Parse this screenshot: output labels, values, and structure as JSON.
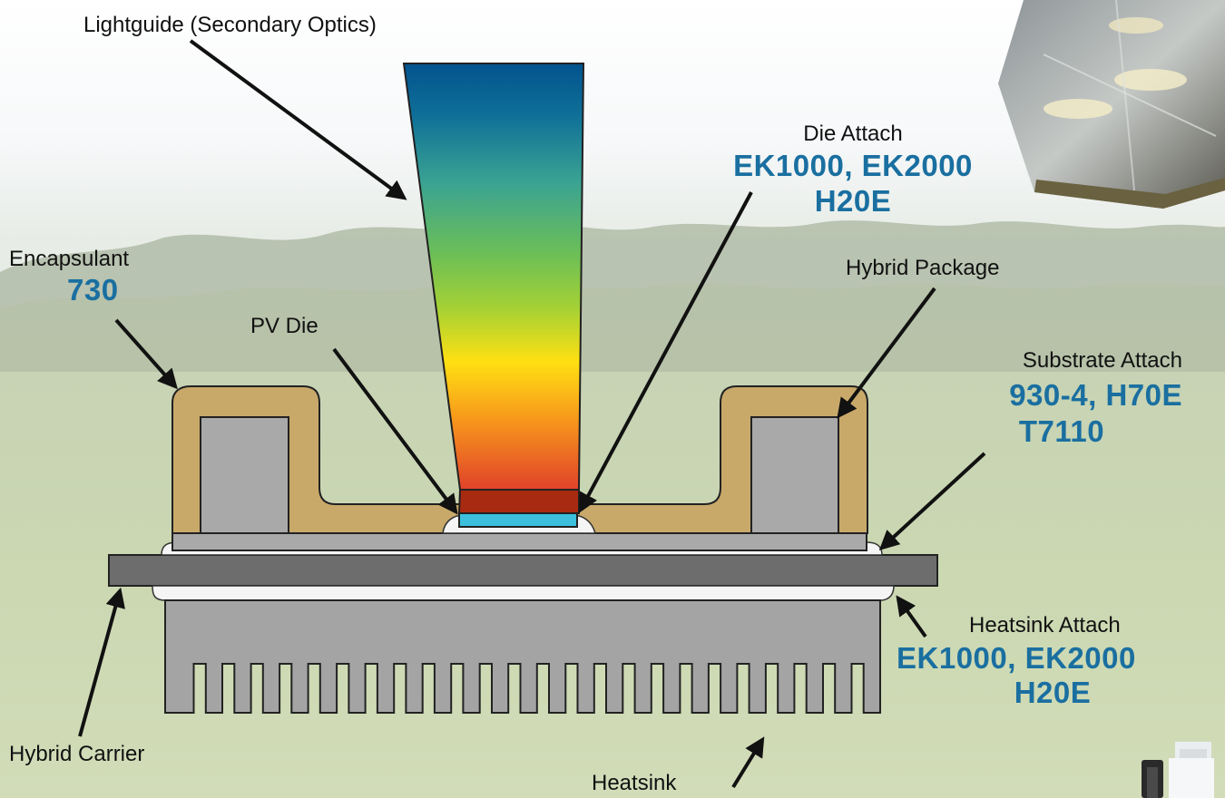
{
  "labels": {
    "lightguide": "Lightguide (Secondary Optics)",
    "die_attach": "Die Attach",
    "die_attach_products_1": "EK1000, EK2000",
    "die_attach_products_2": "H20E",
    "encapsulant": "Encapsulant",
    "encapsulant_product": "730",
    "pv_die": "PV Die",
    "hybrid_package": "Hybrid Package",
    "substrate_attach": "Substrate Attach",
    "substrate_attach_products_1": "930-4, H70E",
    "substrate_attach_products_2": "T7110",
    "heatsink_attach": "Heatsink Attach",
    "heatsink_attach_products_1": "EK1000, EK2000",
    "heatsink_attach_products_2": "H20E",
    "hybrid_carrier": "Hybrid Carrier",
    "heatsink": "Heatsink"
  },
  "colors": {
    "product_text": "#1a6fa0",
    "encapsulant": "#c8a96a",
    "package_gray": "#a9a9a9",
    "carrier_dark": "#6d6d6d",
    "heatsink_gray": "#a4a4a4",
    "pv_die": "#3cc0dc",
    "lightguide_bottom": "#a82a10",
    "lightguide_top": "#02538e"
  },
  "heatsink": {
    "fin_count": 25
  }
}
